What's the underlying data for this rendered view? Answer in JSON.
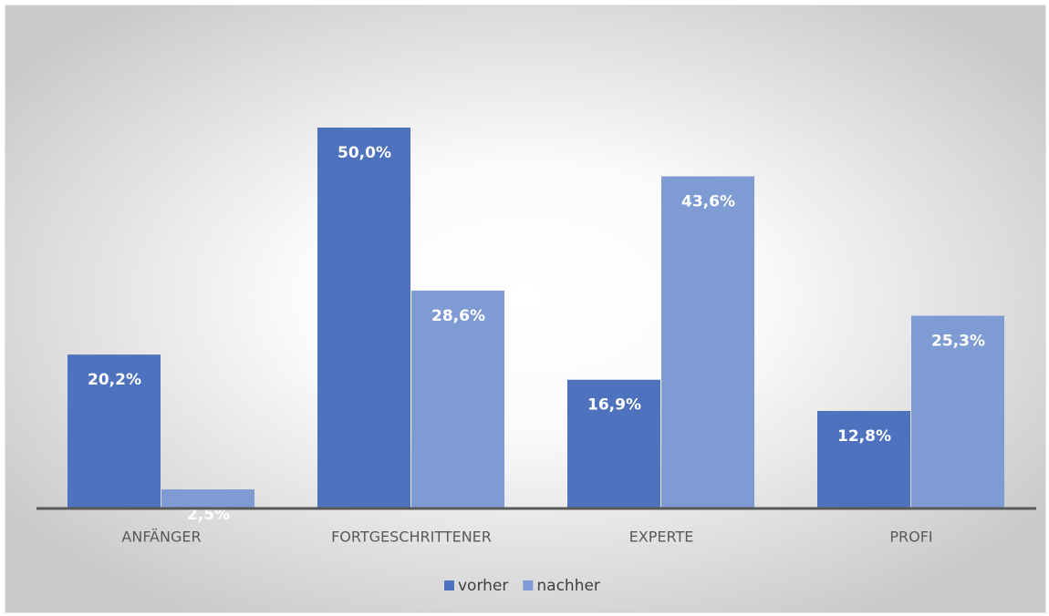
{
  "chart_data": {
    "type": "bar",
    "categories": [
      "ANFÄNGER",
      "FORTGESCHRITTENER",
      "EXPERTE",
      "PROFI"
    ],
    "series": [
      {
        "name": "vorher",
        "color": "#4e72be",
        "values": [
          20.2,
          50.0,
          16.9,
          12.8
        ],
        "value_labels": [
          "20,2%",
          "50,0%",
          "16,9%",
          "12,8%"
        ]
      },
      {
        "name": "nachher",
        "color": "#7f9bd3",
        "values": [
          2.5,
          28.6,
          43.6,
          25.3
        ],
        "value_labels": [
          "2,5%",
          "28,6%",
          "43,6%",
          "25,3%"
        ]
      }
    ],
    "legend": "bottom"
  }
}
